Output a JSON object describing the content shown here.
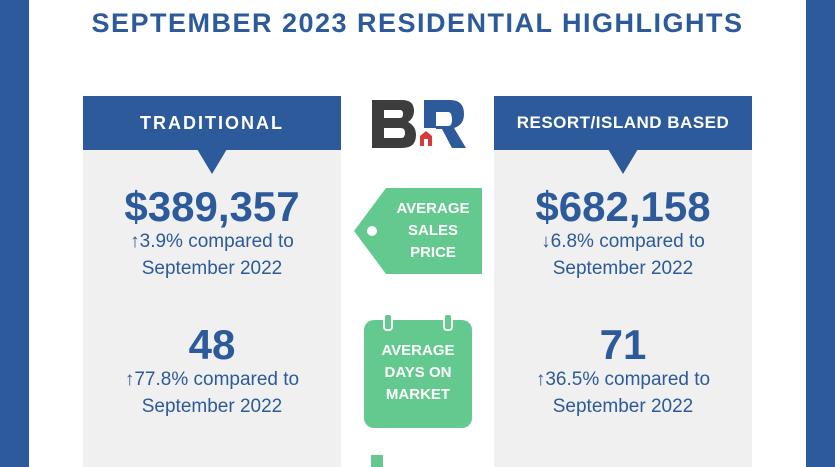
{
  "title": "SEPTEMBER 2023 RESIDENTIAL HIGHLIGHTS",
  "colors": {
    "brand_blue": "#2c5a9a",
    "accent_green": "#63c98e",
    "panel_gray": "#f0f0f0"
  },
  "logo": {
    "icon": "br-logo-icon"
  },
  "categories": [
    {
      "header": "TRADITIONAL",
      "avg_price": "$389,357",
      "price_change": "↑3.9% compared to",
      "price_ref": "September 2022",
      "avg_days": "48",
      "days_change": "↑77.8% compared to",
      "days_ref": "September 2022"
    },
    {
      "header": "RESORT/ISLAND BASED",
      "avg_price": "$682,158",
      "price_change": "↓6.8% compared to",
      "price_ref": "September 2022",
      "avg_days": "71",
      "days_change": "↑36.5% compared to",
      "days_ref": "September 2022"
    }
  ],
  "labels": {
    "price_line1": "AVERAGE",
    "price_line2": "SALES",
    "price_line3": "PRICE",
    "days_line1": "AVERAGE",
    "days_line2": "DAYS ON",
    "days_line3": "MARKET"
  }
}
